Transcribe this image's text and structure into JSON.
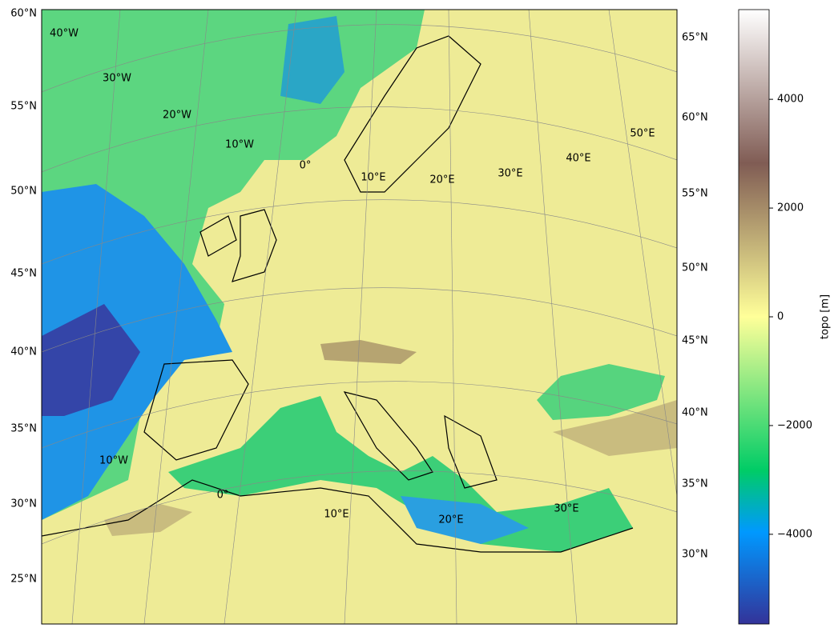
{
  "map": {
    "left_labels": [
      "60°N",
      "55°N",
      "50°N",
      "45°N",
      "40°N",
      "35°N",
      "30°N",
      "25°N"
    ],
    "right_labels": [
      "65°N",
      "60°N",
      "55°N",
      "50°N",
      "45°N",
      "40°N",
      "35°N",
      "30°N"
    ],
    "grid_labels_top": [
      "40°W",
      "30°W",
      "20°W",
      "10°W",
      "0°",
      "10°E",
      "20°E",
      "30°E",
      "40°E",
      "50°E"
    ],
    "grid_labels_bottom": [
      "10°W",
      "0°",
      "10°E",
      "20°E",
      "30°E"
    ]
  },
  "colorbar": {
    "label": "topo [m]",
    "lim": [
      -5650,
      5650
    ],
    "ticks": [
      {
        "value": -4000,
        "label": "−4000"
      },
      {
        "value": -2000,
        "label": "−2000"
      },
      0,
      2000,
      4000
    ]
  }
}
